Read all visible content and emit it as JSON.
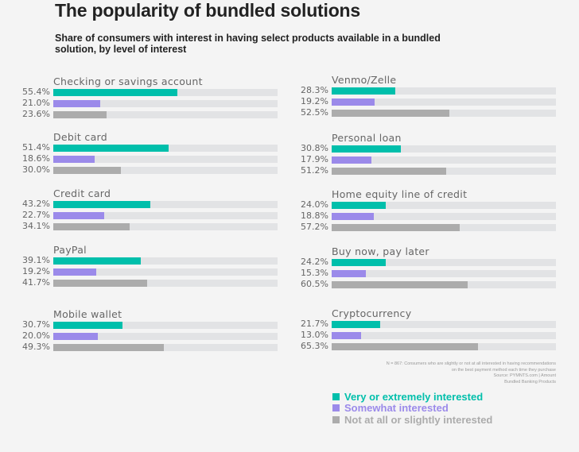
{
  "title": "The popularity of bundled solutions",
  "subtitle": "Share of consumers with interest in having select products available in a bundled solution, by level of interest",
  "colors": {
    "very": "#00bfab",
    "somewhat": "#9b8aea",
    "not": "#acacac",
    "track": "#e2e3e5",
    "background": "#f4f4f4"
  },
  "footnote": {
    "line1": "N = 867: Consumers who are slightly or not at all interested in having recommendations",
    "line2": "on the best payment method each time they purchase",
    "line3": "Source: PYMNTS.com  |  Amount",
    "line4": "Bundled Banking Products"
  },
  "legend": [
    {
      "label": "Very or extremely interested",
      "key": "very"
    },
    {
      "label": "Somewhat interested",
      "key": "somewhat"
    },
    {
      "label": "Not at all or slightly interested",
      "key": "not"
    }
  ],
  "chart_data": {
    "type": "bar",
    "orientation": "horizontal",
    "title": "The popularity of bundled solutions",
    "subtitle": "Share of consumers with interest in having select products available in a bundled solution, by level of interest",
    "xlim": [
      0,
      100
    ],
    "units": "%",
    "grid": false,
    "legend_position": "bottom-right",
    "series_names": [
      "Very or extremely interested",
      "Somewhat interested",
      "Not at all or slightly interested"
    ],
    "categories": [
      "Checking or savings account",
      "Debit card",
      "Credit card",
      "PayPal",
      "Mobile wallet",
      "Venmo/Zelle",
      "Personal loan",
      "Home equity line of credit",
      "Buy now, pay later",
      "Cryptocurrency"
    ],
    "groups": [
      {
        "label": "Checking or savings account",
        "values": [
          55.4,
          21.0,
          23.6
        ],
        "display": [
          "55.4%",
          "21.0%",
          "23.6%"
        ]
      },
      {
        "label": "Debit card",
        "values": [
          51.4,
          18.6,
          30.0
        ],
        "display": [
          "51.4%",
          "18.6%",
          "30.0%"
        ]
      },
      {
        "label": "Credit card",
        "values": [
          43.2,
          22.7,
          34.1
        ],
        "display": [
          "43.2%",
          "22.7%",
          "34.1%"
        ]
      },
      {
        "label": "PayPal",
        "values": [
          39.1,
          19.2,
          41.7
        ],
        "display": [
          "39.1%",
          "19.2%",
          "41.7%"
        ]
      },
      {
        "label": "Mobile wallet",
        "values": [
          30.7,
          20.0,
          49.3
        ],
        "display": [
          "30.7%",
          "20.0%",
          "49.3%"
        ]
      },
      {
        "label": "Venmo/Zelle",
        "values": [
          28.3,
          19.2,
          52.5
        ],
        "display": [
          "28.3%",
          "19.2%",
          "52.5%"
        ]
      },
      {
        "label": "Personal loan",
        "values": [
          30.8,
          17.9,
          51.2
        ],
        "display": [
          "30.8%",
          "17.9%",
          "51.2%"
        ]
      },
      {
        "label": "Home equity line of credit",
        "values": [
          24.0,
          18.8,
          57.2
        ],
        "display": [
          "24.0%",
          "18.8%",
          "57.2%"
        ]
      },
      {
        "label": "Buy now, pay later",
        "values": [
          24.2,
          15.3,
          60.5
        ],
        "display": [
          "24.2%",
          "15.3%",
          "60.5%"
        ]
      },
      {
        "label": "Cryptocurrency",
        "values": [
          21.7,
          13.0,
          65.3
        ],
        "display": [
          "21.7%",
          "13.0%",
          "65.3%"
        ]
      }
    ]
  }
}
